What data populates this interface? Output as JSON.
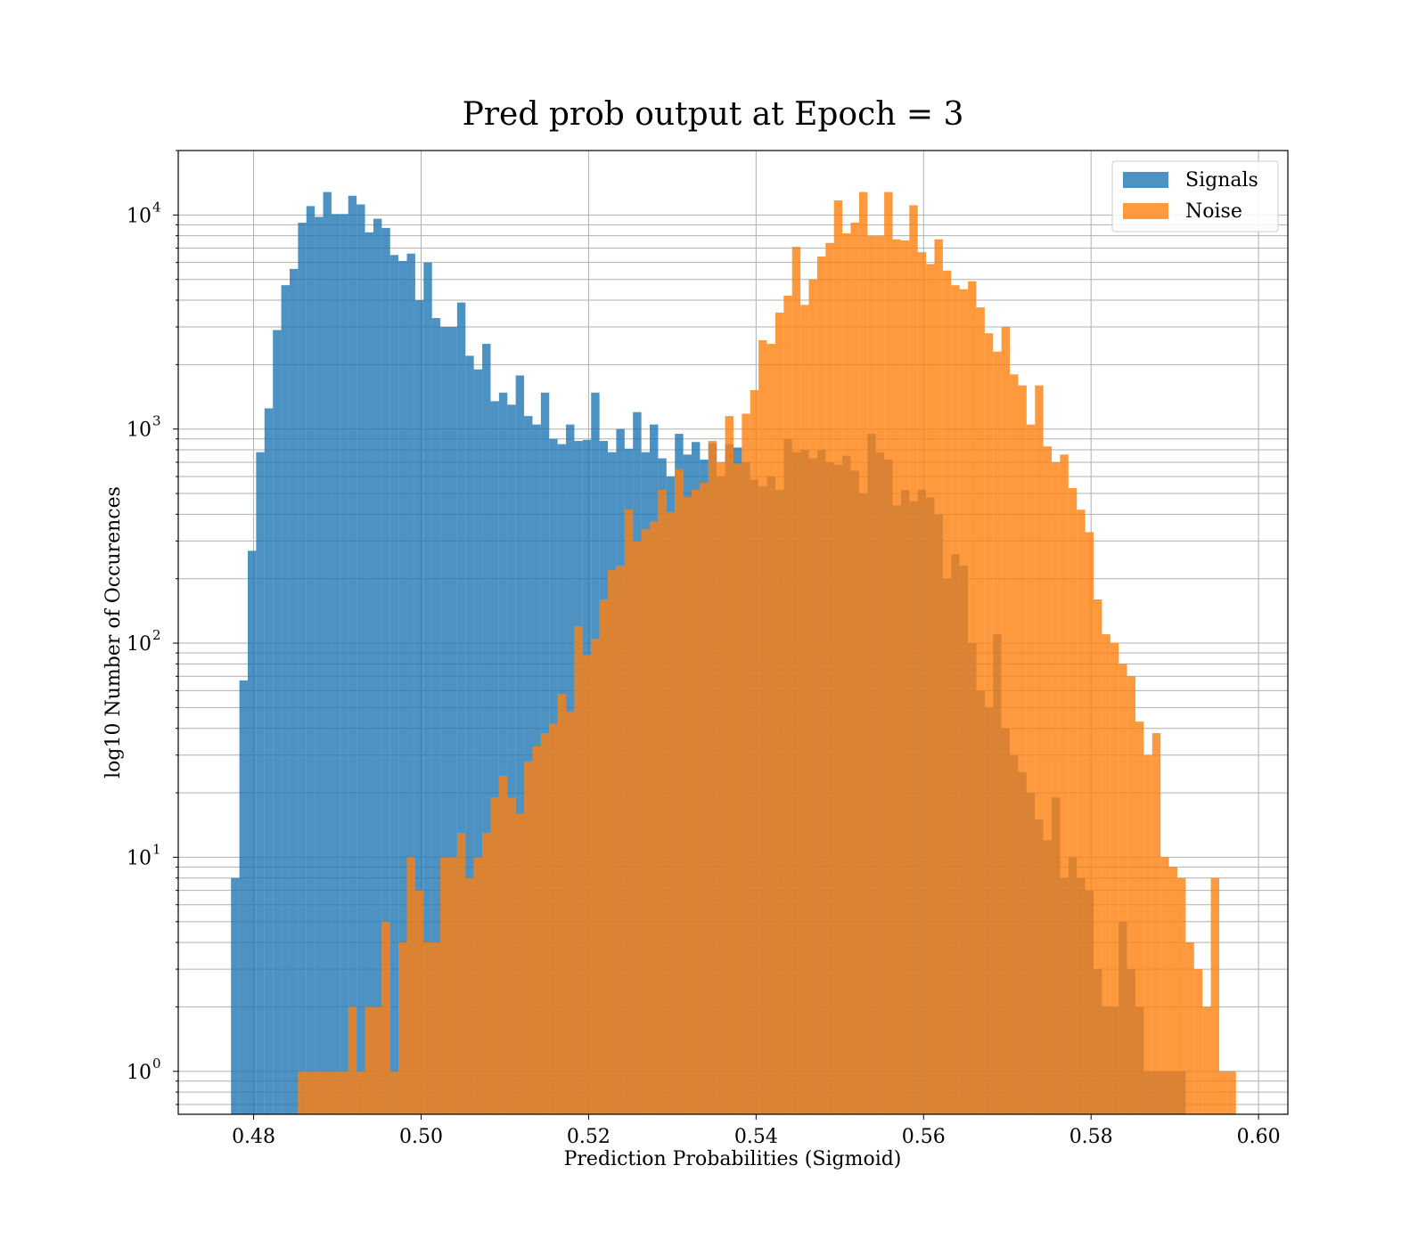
{
  "chart_data": {
    "type": "bar",
    "title": "Pred prob output at Epoch = 3",
    "xlabel": "Prediction Probabilities (Sigmoid)",
    "ylabel": "log10 Number of Occurences",
    "xlim": [
      0.471,
      0.6035
    ],
    "ylim": [
      0.63,
      20000
    ],
    "yscale": "log",
    "grid": true,
    "legend_position": "top-right",
    "xticks": [
      "0.48",
      "0.50",
      "0.52",
      "0.54",
      "0.56",
      "0.58",
      "0.60"
    ],
    "yticks": [
      1,
      10,
      100,
      1000,
      10000
    ],
    "series": [
      {
        "name": "Signals",
        "color": "#1f77b4",
        "opacity": 0.8,
        "bins": [
          [
            0.4773,
            8
          ],
          [
            0.4783,
            67
          ],
          [
            0.4793,
            270
          ],
          [
            0.4803,
            780
          ],
          [
            0.4813,
            1250
          ],
          [
            0.4823,
            2900
          ],
          [
            0.4833,
            4700
          ],
          [
            0.4843,
            5600
          ],
          [
            0.4853,
            9200
          ],
          [
            0.4863,
            11000
          ],
          [
            0.4873,
            9800
          ],
          [
            0.4883,
            12800
          ],
          [
            0.4893,
            10100
          ],
          [
            0.4903,
            10100
          ],
          [
            0.4913,
            12300
          ],
          [
            0.4923,
            11200
          ],
          [
            0.4933,
            8300
          ],
          [
            0.4943,
            9600
          ],
          [
            0.4953,
            8700
          ],
          [
            0.4963,
            6500
          ],
          [
            0.4973,
            6100
          ],
          [
            0.4983,
            6600
          ],
          [
            0.4993,
            4000
          ],
          [
            0.5003,
            6000
          ],
          [
            0.5013,
            3300
          ],
          [
            0.5023,
            3000
          ],
          [
            0.5033,
            3000
          ],
          [
            0.5043,
            3900
          ],
          [
            0.5053,
            2200
          ],
          [
            0.5063,
            1900
          ],
          [
            0.5073,
            2500
          ],
          [
            0.5083,
            1350
          ],
          [
            0.5093,
            1480
          ],
          [
            0.5103,
            1300
          ],
          [
            0.5113,
            1780
          ],
          [
            0.5123,
            1150
          ],
          [
            0.5133,
            1050
          ],
          [
            0.5143,
            1480
          ],
          [
            0.5153,
            900
          ],
          [
            0.5163,
            850
          ],
          [
            0.5173,
            1050
          ],
          [
            0.5183,
            880
          ],
          [
            0.5193,
            890
          ],
          [
            0.5203,
            1480
          ],
          [
            0.5213,
            880
          ],
          [
            0.5223,
            780
          ],
          [
            0.5233,
            1000
          ],
          [
            0.5243,
            810
          ],
          [
            0.5253,
            1200
          ],
          [
            0.5263,
            780
          ],
          [
            0.5273,
            1050
          ],
          [
            0.5283,
            730
          ],
          [
            0.5293,
            600
          ],
          [
            0.5303,
            950
          ],
          [
            0.5313,
            760
          ],
          [
            0.5323,
            870
          ],
          [
            0.5333,
            720
          ],
          [
            0.5343,
            860
          ],
          [
            0.5353,
            600
          ],
          [
            0.5363,
            850
          ],
          [
            0.5373,
            820
          ],
          [
            0.5383,
            700
          ],
          [
            0.5393,
            580
          ],
          [
            0.5403,
            540
          ],
          [
            0.5413,
            600
          ],
          [
            0.5423,
            520
          ],
          [
            0.5433,
            900
          ],
          [
            0.5443,
            780
          ],
          [
            0.5453,
            800
          ],
          [
            0.5463,
            730
          ],
          [
            0.5473,
            800
          ],
          [
            0.5483,
            700
          ],
          [
            0.5493,
            680
          ],
          [
            0.5503,
            750
          ],
          [
            0.5513,
            640
          ],
          [
            0.5523,
            500
          ],
          [
            0.5533,
            950
          ],
          [
            0.5543,
            780
          ],
          [
            0.5553,
            720
          ],
          [
            0.5563,
            440
          ],
          [
            0.5573,
            520
          ],
          [
            0.5583,
            460
          ],
          [
            0.5593,
            520
          ],
          [
            0.5603,
            480
          ],
          [
            0.5613,
            400
          ],
          [
            0.5623,
            200
          ],
          [
            0.5633,
            260
          ],
          [
            0.5643,
            230
          ],
          [
            0.5653,
            100
          ],
          [
            0.5663,
            60
          ],
          [
            0.5673,
            50
          ],
          [
            0.5683,
            110
          ],
          [
            0.5693,
            40
          ],
          [
            0.5703,
            30
          ],
          [
            0.5713,
            25
          ],
          [
            0.5723,
            20
          ],
          [
            0.5733,
            15
          ],
          [
            0.5743,
            12
          ],
          [
            0.5753,
            19
          ],
          [
            0.5763,
            8
          ],
          [
            0.5773,
            10
          ],
          [
            0.5783,
            8
          ],
          [
            0.5793,
            7
          ],
          [
            0.5803,
            3
          ],
          [
            0.5813,
            2
          ],
          [
            0.5823,
            2
          ],
          [
            0.5833,
            5
          ],
          [
            0.5843,
            3
          ],
          [
            0.5853,
            2
          ],
          [
            0.5863,
            1
          ],
          [
            0.5873,
            1
          ],
          [
            0.5883,
            1
          ],
          [
            0.5893,
            1
          ],
          [
            0.5903,
            1
          ]
        ]
      },
      {
        "name": "Noise",
        "color": "#ff7f0e",
        "opacity": 0.8,
        "bins": [
          [
            0.4853,
            1
          ],
          [
            0.4863,
            1
          ],
          [
            0.4873,
            1
          ],
          [
            0.4883,
            1
          ],
          [
            0.4893,
            1
          ],
          [
            0.4903,
            1
          ],
          [
            0.4913,
            2
          ],
          [
            0.4923,
            1
          ],
          [
            0.4933,
            2
          ],
          [
            0.4943,
            2
          ],
          [
            0.4953,
            5
          ],
          [
            0.4963,
            1
          ],
          [
            0.4973,
            4
          ],
          [
            0.4983,
            10
          ],
          [
            0.4993,
            7
          ],
          [
            0.5003,
            4
          ],
          [
            0.5013,
            4
          ],
          [
            0.5023,
            10
          ],
          [
            0.5033,
            10
          ],
          [
            0.5043,
            13
          ],
          [
            0.5053,
            8
          ],
          [
            0.5063,
            10
          ],
          [
            0.5073,
            13
          ],
          [
            0.5083,
            19
          ],
          [
            0.5093,
            24
          ],
          [
            0.5103,
            19
          ],
          [
            0.5113,
            16
          ],
          [
            0.5123,
            28
          ],
          [
            0.5133,
            33
          ],
          [
            0.5143,
            38
          ],
          [
            0.5153,
            42
          ],
          [
            0.5163,
            58
          ],
          [
            0.5173,
            48
          ],
          [
            0.5183,
            120
          ],
          [
            0.5193,
            88
          ],
          [
            0.5203,
            105
          ],
          [
            0.5213,
            160
          ],
          [
            0.5223,
            220
          ],
          [
            0.5233,
            230
          ],
          [
            0.5243,
            420
          ],
          [
            0.5253,
            300
          ],
          [
            0.5263,
            340
          ],
          [
            0.5273,
            370
          ],
          [
            0.5283,
            520
          ],
          [
            0.5293,
            410
          ],
          [
            0.5303,
            650
          ],
          [
            0.5313,
            480
          ],
          [
            0.5323,
            520
          ],
          [
            0.5333,
            560
          ],
          [
            0.5343,
            880
          ],
          [
            0.5353,
            700
          ],
          [
            0.5363,
            1150
          ],
          [
            0.5373,
            690
          ],
          [
            0.5383,
            1180
          ],
          [
            0.5393,
            1520
          ],
          [
            0.5403,
            2600
          ],
          [
            0.5413,
            2500
          ],
          [
            0.5423,
            3500
          ],
          [
            0.5433,
            4200
          ],
          [
            0.5443,
            7100
          ],
          [
            0.5453,
            3800
          ],
          [
            0.5463,
            5000
          ],
          [
            0.5473,
            6400
          ],
          [
            0.5483,
            7400
          ],
          [
            0.5493,
            11700
          ],
          [
            0.5503,
            8200
          ],
          [
            0.5513,
            9200
          ],
          [
            0.5523,
            12800
          ],
          [
            0.5533,
            8000
          ],
          [
            0.5543,
            8000
          ],
          [
            0.5553,
            12800
          ],
          [
            0.5563,
            7700
          ],
          [
            0.5573,
            7600
          ],
          [
            0.5583,
            11100
          ],
          [
            0.5593,
            6700
          ],
          [
            0.5603,
            5900
          ],
          [
            0.5613,
            7700
          ],
          [
            0.5623,
            5500
          ],
          [
            0.5633,
            4700
          ],
          [
            0.5643,
            4500
          ],
          [
            0.5653,
            4900
          ],
          [
            0.5663,
            3700
          ],
          [
            0.5673,
            2800
          ],
          [
            0.5683,
            2300
          ],
          [
            0.5693,
            3000
          ],
          [
            0.5703,
            1800
          ],
          [
            0.5713,
            1600
          ],
          [
            0.5723,
            1050
          ],
          [
            0.5733,
            1600
          ],
          [
            0.5743,
            830
          ],
          [
            0.5753,
            700
          ],
          [
            0.5763,
            760
          ],
          [
            0.5773,
            530
          ],
          [
            0.5783,
            420
          ],
          [
            0.5793,
            330
          ],
          [
            0.5803,
            160
          ],
          [
            0.5813,
            110
          ],
          [
            0.5823,
            100
          ],
          [
            0.5833,
            80
          ],
          [
            0.5843,
            70
          ],
          [
            0.5853,
            43
          ],
          [
            0.5863,
            30
          ],
          [
            0.5873,
            38
          ],
          [
            0.5883,
            10
          ],
          [
            0.5893,
            9
          ],
          [
            0.5903,
            8
          ],
          [
            0.5913,
            4
          ],
          [
            0.5923,
            3
          ],
          [
            0.5933,
            2
          ],
          [
            0.5943,
            8
          ],
          [
            0.5953,
            1
          ],
          [
            0.5963,
            1
          ]
        ]
      }
    ]
  }
}
